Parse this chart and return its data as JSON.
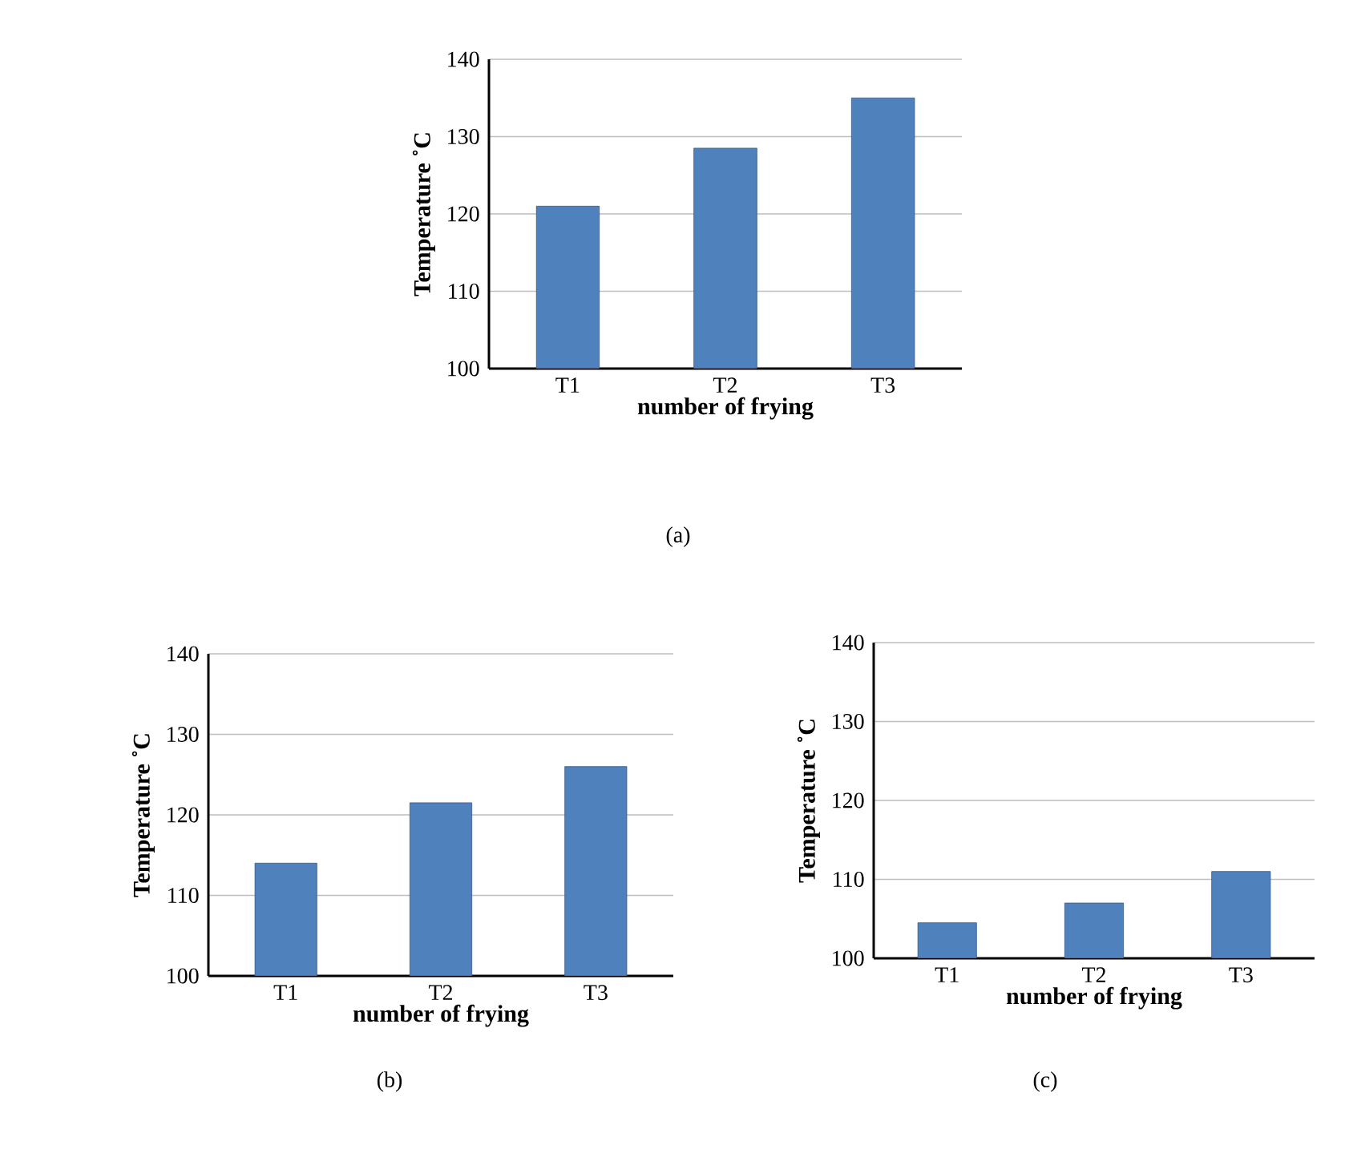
{
  "chart_data": [
    {
      "type": "bar",
      "categories": [
        "T1",
        "T2",
        "T3"
      ],
      "values": [
        121,
        128.5,
        135
      ],
      "color": "#4f81bd",
      "xlabel": "number of frying",
      "ylabel": "Temperature ˚C",
      "ylim": [
        100,
        140
      ],
      "yticks": [
        100,
        110,
        120,
        130,
        140
      ],
      "grid": "y",
      "annotations": [
        "(a)"
      ]
    },
    {
      "type": "bar",
      "categories": [
        "T1",
        "T2",
        "T3"
      ],
      "values": [
        114,
        121.5,
        126
      ],
      "color": "#4f81bd",
      "xlabel": "number of frying",
      "ylabel": "Temperature ˚C",
      "ylim": [
        100,
        140
      ],
      "yticks": [
        100,
        110,
        120,
        130,
        140
      ],
      "grid": "y",
      "annotations": [
        "(b)"
      ]
    },
    {
      "type": "bar",
      "categories": [
        "T1",
        "T2",
        "T3"
      ],
      "values": [
        104.5,
        107,
        111
      ],
      "color": "#4f81bd",
      "xlabel": "number of frying",
      "ylabel": "Temperature ˚C",
      "ylim": [
        100,
        140
      ],
      "yticks": [
        100,
        110,
        120,
        130,
        140
      ],
      "grid": "y",
      "annotations": [
        "(c)"
      ]
    }
  ]
}
